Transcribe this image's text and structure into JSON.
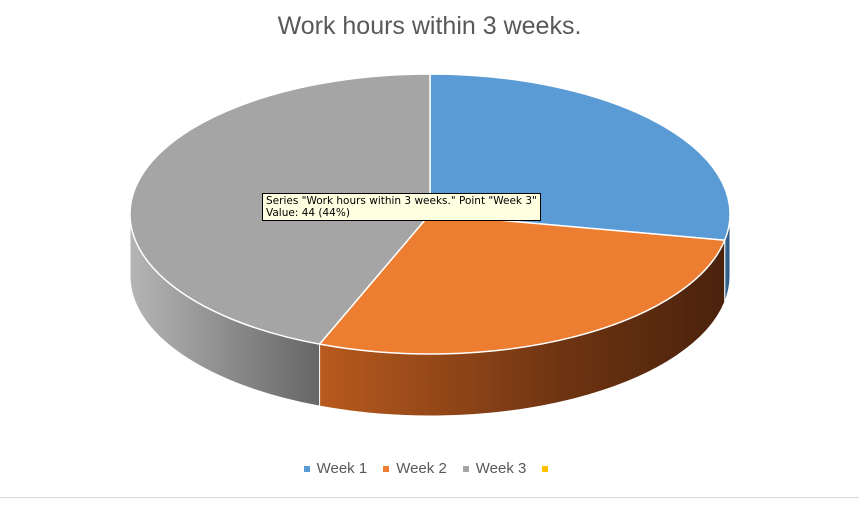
{
  "chart_data": {
    "type": "pie",
    "variant": "3d",
    "title": "Work hours within 3 weeks.",
    "categories": [
      "Week 1",
      "Week 2",
      "Week 3"
    ],
    "values": [
      28,
      28,
      44
    ],
    "colors": [
      "#5b9bd5",
      "#ed7d31",
      "#a5a5a5"
    ],
    "series": [
      {
        "name": "Work hours within 3 weeks.",
        "values": [
          28,
          28,
          44
        ]
      }
    ],
    "legend": {
      "placement": "bottom",
      "entries": [
        {
          "label": "Week 1",
          "color": "#5b9bd5"
        },
        {
          "label": "Week 2",
          "color": "#ed7d31"
        },
        {
          "label": "Week 3",
          "color": "#a5a5a5"
        },
        {
          "label": "",
          "color": "#ffc000"
        }
      ]
    },
    "tooltip": {
      "line1": "Series \"Work hours within 3 weeks.\" Point \"Week 3\"",
      "line2": "Value: 44 (44%)"
    }
  }
}
